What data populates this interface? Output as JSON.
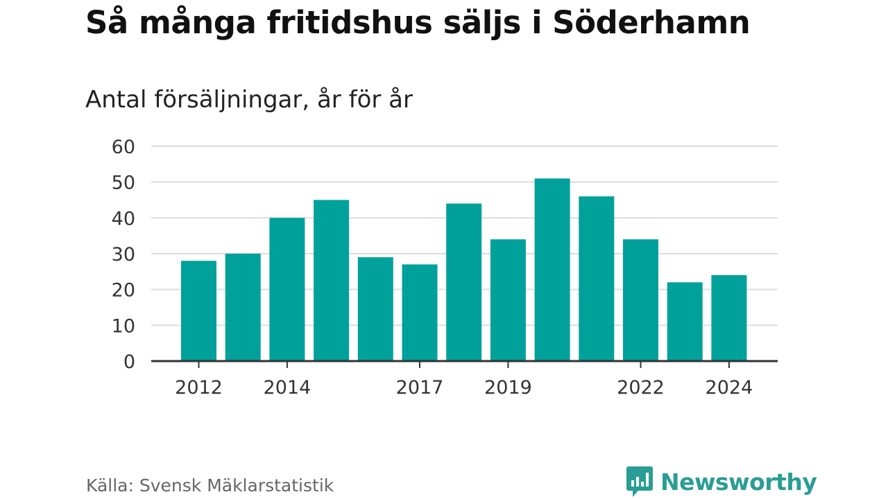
{
  "title": "Så många fritidshus säljs i Söderhamn",
  "subtitle": "Antal försäljningar, år för år",
  "source": "Källa: Svensk Mäklarstatistik",
  "brand": {
    "name": "Newsworthy",
    "icon": "bar-chart-speech-bubble-logo",
    "color": "#2a9d95"
  },
  "colors": {
    "bar": "#00a19a",
    "grid": "#dddddd",
    "axis": "#333333",
    "tick_text": "#333333"
  },
  "chart_data": {
    "type": "bar",
    "categories": [
      "2012",
      "2013",
      "2014",
      "2015",
      "2016",
      "2017",
      "2018",
      "2019",
      "2020",
      "2021",
      "2022",
      "2023",
      "2024"
    ],
    "values": [
      28,
      30,
      40,
      45,
      29,
      27,
      44,
      34,
      51,
      46,
      34,
      22,
      24
    ],
    "x_tick_labels": [
      "2012",
      "2014",
      "2017",
      "2019",
      "2022",
      "2024"
    ],
    "y_ticks": [
      0,
      10,
      20,
      30,
      40,
      50,
      60
    ],
    "ylim": [
      0,
      60
    ],
    "xlabel": "",
    "ylabel": "",
    "grid": true
  }
}
